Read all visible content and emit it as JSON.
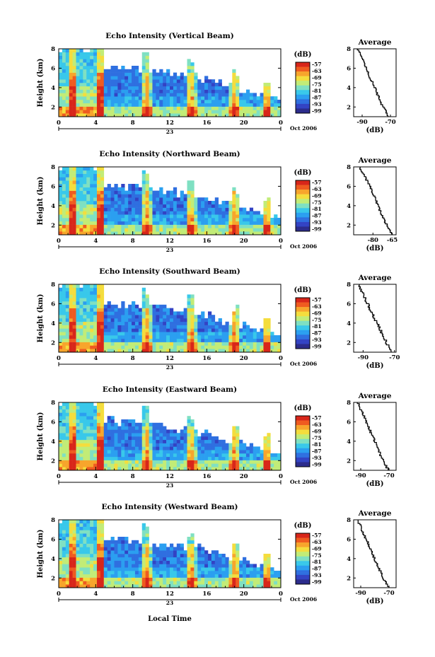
{
  "common": {
    "y_ticks": [
      "2",
      "4",
      "6",
      "8"
    ],
    "x_ticks": [
      "0",
      "4",
      "8",
      "12",
      "16",
      "20",
      "0"
    ],
    "day_label": "23",
    "month_label": "Oct 2006",
    "ylabel": "Height (km)",
    "xlabel": "Local Time",
    "colorbar_unit": "(dB)",
    "colorbar_ticks": [
      "-57",
      "-63",
      "-69",
      "-75",
      "-81",
      "-87",
      "-93",
      "-99"
    ],
    "avg_title": "Average",
    "avg_xlabel": "(dB)",
    "avg_y_ticks": [
      "2",
      "4",
      "6",
      "8"
    ]
  },
  "chart_data": [
    {
      "type": "heatmap",
      "title": "Echo Intensity (Vertical Beam)",
      "xlabel": "Local Time",
      "ylabel": "Height (km)",
      "xlim": [
        0,
        24
      ],
      "ylim": [
        1,
        8
      ],
      "colorbar": {
        "label": "(dB)",
        "range": [
          -99,
          -57
        ]
      },
      "convective_bursts_hour": [
        1.5,
        4.5,
        9.5,
        14.3,
        19.0,
        22.5
      ],
      "average_profile": {
        "xlabel": "(dB)",
        "xlim": [
          -96,
          -66
        ],
        "x_ticks": [
          "-90",
          "-70"
        ],
        "height_km": [
          1,
          2,
          3,
          4,
          5,
          6,
          7,
          8
        ],
        "db": [
          -71,
          -75,
          -78,
          -81,
          -84,
          -87,
          -90,
          -93
        ]
      }
    },
    {
      "type": "heatmap",
      "title": "Echo Intensity (Northward Beam)",
      "xlabel": "Local Time",
      "ylabel": "Height (km)",
      "xlim": [
        0,
        24
      ],
      "ylim": [
        1,
        8
      ],
      "colorbar": {
        "label": "(dB)",
        "range": [
          -99,
          -57
        ]
      },
      "convective_bursts_hour": [
        1.5,
        4.5,
        9.5,
        14.3,
        19.0,
        22.5
      ],
      "average_profile": {
        "xlabel": "(dB)",
        "xlim": [
          -95,
          -62
        ],
        "x_ticks": [
          "-80",
          "-65"
        ],
        "height_km": [
          1,
          2,
          3,
          4,
          5,
          6,
          7,
          8
        ],
        "db": [
          -65,
          -69,
          -73,
          -76,
          -79,
          -82,
          -86,
          -90
        ]
      }
    },
    {
      "type": "heatmap",
      "title": "Echo Intensity (Southward Beam)",
      "xlabel": "Local Time",
      "ylabel": "Height (km)",
      "xlim": [
        0,
        24
      ],
      "ylim": [
        1,
        8
      ],
      "colorbar": {
        "label": "(dB)",
        "range": [
          -99,
          -57
        ]
      },
      "convective_bursts_hour": [
        1.5,
        4.5,
        9.5,
        14.3,
        19.0,
        22.5
      ],
      "average_profile": {
        "xlabel": "(dB)",
        "xlim": [
          -96,
          -69
        ],
        "x_ticks": [
          "-90",
          "-70"
        ],
        "height_km": [
          1,
          2,
          3,
          4,
          5,
          6,
          7,
          8
        ],
        "db": [
          -71,
          -75,
          -78,
          -81,
          -84,
          -87,
          -90,
          -93
        ]
      }
    },
    {
      "type": "heatmap",
      "title": "Echo Intensity (Eastward Beam)",
      "xlabel": "Local Time",
      "ylabel": "Height (km)",
      "xlim": [
        0,
        24
      ],
      "ylim": [
        1,
        8
      ],
      "colorbar": {
        "label": "(dB)",
        "range": [
          -99,
          -57
        ]
      },
      "convective_bursts_hour": [
        1.5,
        4.5,
        9.5,
        14.3,
        19.0,
        22.5
      ],
      "average_profile": {
        "xlabel": "(dB)",
        "xlim": [
          -95,
          -65
        ],
        "x_ticks": [
          "-90",
          "-70"
        ],
        "height_km": [
          1,
          2,
          3,
          4,
          5,
          6,
          7,
          8
        ],
        "db": [
          -70,
          -74,
          -77,
          -80,
          -83,
          -86,
          -89,
          -92
        ]
      }
    },
    {
      "type": "heatmap",
      "title": "Echo Intensity (Westward Beam)",
      "xlabel": "Local Time",
      "ylabel": "Height (km)",
      "xlim": [
        0,
        24
      ],
      "ylim": [
        1,
        8
      ],
      "colorbar": {
        "label": "(dB)",
        "range": [
          -99,
          -57
        ]
      },
      "convective_bursts_hour": [
        1.5,
        4.5,
        9.5,
        14.3,
        19.0,
        22.5
      ],
      "average_profile": {
        "xlabel": "(dB)",
        "xlim": [
          -95,
          -65
        ],
        "x_ticks": [
          "-90",
          "-70"
        ],
        "height_km": [
          1,
          2,
          3,
          4,
          5,
          6,
          7,
          8
        ],
        "db": [
          -70,
          -74,
          -77,
          -80,
          -83,
          -86,
          -89,
          -92
        ]
      }
    }
  ]
}
